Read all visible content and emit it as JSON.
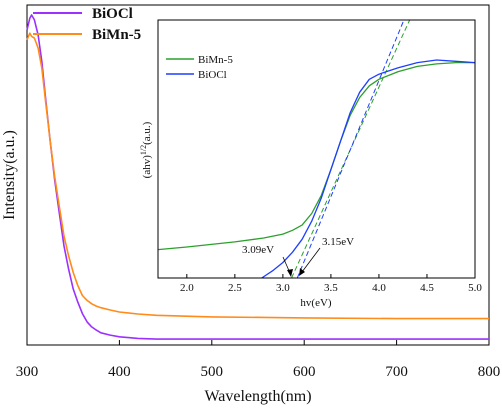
{
  "chart_data": [
    {
      "type": "line",
      "title": "",
      "xlabel": "Wavelength(nm)",
      "ylabel": "Intensity(a.u.)",
      "xlim": [
        300,
        800
      ],
      "ylim": [
        0,
        1
      ],
      "xticks": [
        300,
        400,
        500,
        600,
        700,
        800
      ],
      "yticks_shown": false,
      "grid": false,
      "legend": "top-left",
      "series": [
        {
          "name": "BiOCl",
          "color": "#9b30ff",
          "x": [
            300,
            303,
            305,
            308,
            312,
            316,
            320,
            325,
            330,
            335,
            340,
            345,
            350,
            355,
            360,
            365,
            370,
            375,
            380,
            390,
            400,
            420,
            440,
            500,
            600,
            700,
            800
          ],
          "y": [
            0.955,
            0.99,
            1.0,
            0.985,
            0.94,
            0.86,
            0.75,
            0.62,
            0.5,
            0.4,
            0.3,
            0.23,
            0.17,
            0.13,
            0.095,
            0.07,
            0.055,
            0.045,
            0.037,
            0.03,
            0.025,
            0.02,
            0.018,
            0.018,
            0.018,
            0.018,
            0.018
          ]
        },
        {
          "name": "BiMn-5",
          "color": "#ff8c1a",
          "x": [
            300,
            303,
            305,
            308,
            312,
            316,
            320,
            325,
            330,
            335,
            340,
            345,
            350,
            355,
            360,
            365,
            370,
            375,
            380,
            390,
            400,
            420,
            440,
            500,
            600,
            700,
            800
          ],
          "y": [
            0.925,
            0.945,
            0.935,
            0.93,
            0.9,
            0.84,
            0.74,
            0.62,
            0.51,
            0.42,
            0.33,
            0.27,
            0.22,
            0.18,
            0.15,
            0.135,
            0.125,
            0.118,
            0.113,
            0.106,
            0.1,
            0.094,
            0.09,
            0.085,
            0.082,
            0.08,
            0.08
          ]
        }
      ]
    },
    {
      "type": "line",
      "title": "",
      "xlabel": "hv(eV)",
      "ylabel_base": "(ahv)",
      "ylabel_sup": "1/2",
      "ylabel_unit": "(a.u.)",
      "xlim": [
        1.7,
        5.0
      ],
      "ylim": [
        0,
        1
      ],
      "xticks": [
        2.0,
        2.5,
        3.0,
        3.5,
        4.0,
        4.5,
        5.0
      ],
      "xtick_labels": [
        "2.0",
        "2.5",
        "3.0",
        "3.5",
        "4.0",
        "4.5",
        "5.0"
      ],
      "grid": false,
      "legend": "top-left",
      "series": [
        {
          "name": "BiMn-5",
          "color": "#2ca02c",
          "x": [
            1.7,
            2.0,
            2.5,
            2.8,
            3.0,
            3.1,
            3.2,
            3.3,
            3.4,
            3.5,
            3.6,
            3.7,
            3.8,
            3.9,
            4.0,
            4.2,
            4.4,
            4.6,
            4.8,
            5.0
          ],
          "y": [
            0.11,
            0.12,
            0.14,
            0.155,
            0.17,
            0.185,
            0.205,
            0.25,
            0.32,
            0.42,
            0.53,
            0.63,
            0.7,
            0.745,
            0.77,
            0.8,
            0.82,
            0.83,
            0.835,
            0.835
          ]
        },
        {
          "name": "BiOCl",
          "color": "#1f3fff",
          "x": [
            2.78,
            2.9,
            3.0,
            3.1,
            3.2,
            3.3,
            3.4,
            3.5,
            3.6,
            3.7,
            3.8,
            3.9,
            4.0,
            4.2,
            4.4,
            4.6,
            4.8,
            5.0
          ],
          "y": [
            0.0,
            0.03,
            0.06,
            0.1,
            0.15,
            0.22,
            0.31,
            0.42,
            0.53,
            0.64,
            0.72,
            0.77,
            0.79,
            0.815,
            0.835,
            0.845,
            0.84,
            0.835
          ]
        }
      ],
      "tangent_lines": [
        {
          "color": "#2ca02c",
          "x": [
            3.09,
            4.32
          ],
          "y": [
            0.0,
            1.0
          ]
        },
        {
          "color": "#1f3fff",
          "x": [
            3.15,
            4.26
          ],
          "y": [
            0.0,
            1.0
          ]
        }
      ],
      "annotations": [
        {
          "text": "3.09eV",
          "x": 3.09
        },
        {
          "text": "3.15eV",
          "x": 3.15
        }
      ]
    }
  ]
}
